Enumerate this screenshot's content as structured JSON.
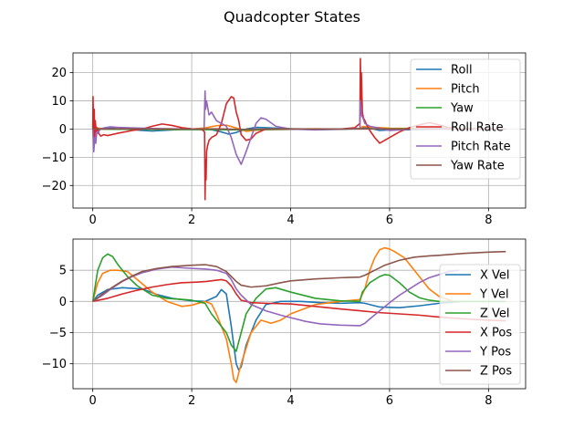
{
  "figure": {
    "suptitle": "Quadcopter States"
  },
  "chart_data": [
    {
      "type": "line",
      "panel": "top",
      "xlim": [
        -0.4,
        8.75
      ],
      "ylim": [
        -28,
        27
      ],
      "xticks": [
        0,
        2,
        4,
        6,
        8
      ],
      "yticks": [
        -20,
        -10,
        0,
        10,
        20
      ],
      "grid": true,
      "legend_position": "top-right",
      "series": [
        {
          "name": "Roll",
          "color": "#1f77b4",
          "x": [
            0,
            0.05,
            0.1,
            0.2,
            0.3,
            0.5,
            0.8,
            1.0,
            1.2,
            1.5,
            1.8,
            2.0,
            2.2,
            2.27,
            2.4,
            2.6,
            2.75,
            2.9,
            3.1,
            3.3,
            3.6,
            4.0,
            4.5,
            5.0,
            5.4,
            5.45,
            5.6,
            5.8,
            6.0,
            6.5,
            7.0,
            7.5,
            8.0,
            8.35
          ],
          "y": [
            0,
            -0.4,
            -0.3,
            0.2,
            0.4,
            0.1,
            -0.2,
            -0.5,
            -0.7,
            -0.4,
            -0.1,
            0.0,
            0.1,
            0.3,
            -0.2,
            -1.0,
            -1.8,
            -1.2,
            0.0,
            0.6,
            0.4,
            0.1,
            -0.2,
            -0.1,
            0.2,
            0.5,
            0.3,
            -0.5,
            -0.3,
            -0.2,
            0.0,
            0.1,
            0.0,
            0.0
          ]
        },
        {
          "name": "Pitch",
          "color": "#ff7f0e",
          "x": [
            0,
            0.1,
            0.3,
            0.6,
            1.0,
            1.5,
            2.0,
            2.27,
            2.5,
            2.7,
            2.9,
            3.1,
            3.3,
            3.6,
            4.0,
            4.5,
            5.0,
            5.4,
            5.45,
            5.7,
            6.0,
            6.5,
            7.0,
            7.5,
            8.0,
            8.35
          ],
          "y": [
            0,
            0.3,
            0.1,
            -0.1,
            0.0,
            0.1,
            0.0,
            0.4,
            1.2,
            1.4,
            0.4,
            -0.8,
            -0.4,
            0.1,
            0.0,
            0.1,
            0.0,
            0.2,
            0.9,
            0.6,
            0.3,
            0.2,
            0.4,
            0.2,
            0.1,
            0.0
          ]
        },
        {
          "name": "Yaw",
          "color": "#2ca02c",
          "x": [
            0,
            0.5,
            1.0,
            1.5,
            2.0,
            2.5,
            3.0,
            3.5,
            4.0,
            4.5,
            5.0,
            5.5,
            6.0,
            6.5,
            7.0,
            7.5,
            8.0,
            8.35
          ],
          "y": [
            0,
            -0.1,
            -0.1,
            -0.2,
            -0.2,
            -0.2,
            -0.3,
            -0.2,
            -0.1,
            0.0,
            0.0,
            0.1,
            0.1,
            0.1,
            0.2,
            0.1,
            0.1,
            0.1
          ]
        },
        {
          "name": "Roll Rate",
          "color": "#d62728",
          "x": [
            0,
            0.005,
            0.01,
            0.02,
            0.03,
            0.04,
            0.05,
            0.07,
            0.09,
            0.12,
            0.16,
            0.22,
            0.3,
            0.5,
            0.8,
            1.0,
            1.2,
            1.4,
            1.6,
            1.8,
            2.0,
            2.2,
            2.26,
            2.27,
            2.28,
            2.29,
            2.3,
            2.32,
            2.35,
            2.4,
            2.5,
            2.6,
            2.7,
            2.8,
            2.85,
            2.9,
            2.95,
            3.0,
            3.1,
            3.2,
            3.3,
            3.5,
            3.8,
            4.0,
            4.5,
            5.0,
            5.3,
            5.4,
            5.41,
            5.42,
            5.43,
            5.45,
            5.47,
            5.5,
            5.55,
            5.6,
            5.7,
            5.8,
            6.0,
            6.2,
            6.4,
            6.6,
            6.8,
            7.0,
            7.2,
            7.5,
            8.0,
            8.35
          ],
          "y": [
            0,
            11.5,
            6,
            -6,
            7,
            -5,
            3,
            -1,
            0.5,
            -1.5,
            -2.5,
            -2.0,
            -2.3,
            -1.5,
            -0.5,
            0.0,
            1.0,
            1.8,
            1.3,
            0.5,
            0.1,
            0.0,
            -1,
            -25,
            -11,
            -18,
            -8,
            -6,
            -4,
            -3,
            -2,
            2,
            9,
            11.5,
            11,
            6,
            3,
            -2,
            -4,
            -3.5,
            -1.5,
            0.0,
            0.0,
            0.0,
            0.0,
            0.0,
            0.5,
            2,
            25,
            8,
            20,
            6,
            4,
            3,
            1,
            -0.5,
            -3,
            -5,
            -3,
            -1,
            0.5,
            1.5,
            2.3,
            1.5,
            0.5,
            0.0,
            0.2,
            0.0
          ]
        },
        {
          "name": "Pitch Rate",
          "color": "#9467bd",
          "x": [
            0,
            0.02,
            0.04,
            0.06,
            0.08,
            0.1,
            0.15,
            0.25,
            0.35,
            0.5,
            0.8,
            1.2,
            1.6,
            2.0,
            2.25,
            2.27,
            2.28,
            2.3,
            2.35,
            2.4,
            2.5,
            2.6,
            2.7,
            2.8,
            2.9,
            3.0,
            3.1,
            3.2,
            3.3,
            3.4,
            3.5,
            3.7,
            4.0,
            4.5,
            5.0,
            5.4,
            5.41,
            5.43,
            5.46,
            5.5,
            5.6,
            5.8,
            6.0,
            6.5,
            7.0,
            7.5,
            8.0,
            8.35
          ],
          "y": [
            0,
            -8,
            -3,
            -5,
            -1,
            -1.5,
            0,
            0.5,
            0.8,
            0.6,
            0.4,
            0.2,
            0.1,
            0.0,
            0.1,
            13.5,
            7,
            10,
            5,
            6,
            3,
            2,
            1,
            -3,
            -9,
            -12.5,
            -8,
            -3,
            2,
            4,
            3.5,
            1,
            0.0,
            -0.3,
            0.0,
            0.2,
            10,
            5,
            4,
            2,
            1,
            0.3,
            -0.5,
            0.0,
            0.3,
            0.1,
            0.0,
            0.0
          ]
        },
        {
          "name": "Yaw Rate",
          "color": "#8c564b",
          "x": [
            0,
            0.5,
            1.0,
            1.5,
            2.0,
            2.5,
            3.0,
            3.5,
            4.0,
            4.5,
            5.0,
            5.5,
            6.0,
            6.5,
            7.0,
            7.5,
            8.0,
            8.35
          ],
          "y": [
            0,
            0.1,
            0.1,
            0.0,
            0.0,
            0.1,
            -0.1,
            0.0,
            0.1,
            0.0,
            0.0,
            0.1,
            0.0,
            0.0,
            0.1,
            0.0,
            0.0,
            0.0
          ]
        }
      ]
    },
    {
      "type": "line",
      "panel": "bottom",
      "xlim": [
        -0.4,
        8.75
      ],
      "ylim": [
        -14,
        10
      ],
      "xticks": [
        0,
        2,
        4,
        6,
        8
      ],
      "yticks": [
        -10,
        -5,
        0,
        5
      ],
      "grid": true,
      "legend_position": "right",
      "series": [
        {
          "name": "X Vel",
          "color": "#1f77b4",
          "x": [
            0,
            0.1,
            0.3,
            0.6,
            1.0,
            1.3,
            1.6,
            2.0,
            2.27,
            2.5,
            2.6,
            2.7,
            2.8,
            2.9,
            2.95,
            3.0,
            3.1,
            3.3,
            3.5,
            3.8,
            4.2,
            4.6,
            5.0,
            5.4,
            5.5,
            5.8,
            6.2,
            6.6,
            7.0,
            7.3,
            7.5,
            8.0,
            8.35
          ],
          "y": [
            0,
            1.0,
            1.9,
            2.2,
            2.0,
            1.1,
            0.5,
            0.1,
            0.0,
            0.8,
            1.9,
            1.2,
            -4,
            -10,
            -11,
            -10.5,
            -7,
            -3,
            -0.5,
            0.0,
            0.0,
            -0.2,
            -0.3,
            -0.2,
            -0.3,
            -0.9,
            -1.0,
            -0.7,
            -0.3,
            -0.1,
            0.0,
            0.0,
            0.0
          ]
        },
        {
          "name": "Y Vel",
          "color": "#ff7f0e",
          "x": [
            0,
            0.1,
            0.2,
            0.35,
            0.5,
            0.7,
            0.9,
            1.2,
            1.5,
            1.8,
            2.0,
            2.27,
            2.4,
            2.5,
            2.6,
            2.7,
            2.8,
            2.85,
            2.9,
            3.0,
            3.2,
            3.4,
            3.6,
            3.8,
            4.0,
            4.5,
            5.0,
            5.4,
            5.5,
            5.6,
            5.7,
            5.8,
            5.9,
            6.0,
            6.1,
            6.3,
            6.5,
            6.8,
            7.0,
            7.3,
            7.6,
            8.0,
            8.35
          ],
          "y": [
            0,
            3,
            4.5,
            5,
            5,
            4.8,
            3.5,
            1.5,
            0,
            -0.8,
            -0.6,
            0.0,
            -0.4,
            -2,
            -4,
            -6,
            -10,
            -12.5,
            -13,
            -10,
            -5,
            -3,
            -3.5,
            -3,
            -2,
            -0.5,
            0.0,
            0.3,
            2,
            5,
            7,
            8.3,
            8.6,
            8.4,
            8.0,
            7,
            5,
            2,
            0.8,
            0.0,
            0.0,
            0.0,
            0.0
          ]
        },
        {
          "name": "Z Vel",
          "color": "#2ca02c",
          "x": [
            0,
            0.05,
            0.1,
            0.2,
            0.3,
            0.4,
            0.5,
            0.7,
            0.9,
            1.2,
            1.5,
            2.0,
            2.27,
            2.4,
            2.6,
            2.7,
            2.8,
            2.9,
            3.0,
            3.1,
            3.3,
            3.5,
            3.7,
            4.0,
            4.5,
            5.0,
            5.4,
            5.45,
            5.6,
            5.8,
            5.9,
            6.0,
            6.2,
            6.4,
            6.6,
            6.8,
            7.0,
            7.5,
            8.0,
            8.35
          ],
          "y": [
            0,
            2.5,
            5,
            7,
            7.6,
            7.2,
            6,
            4,
            2.5,
            1.0,
            0.5,
            0.2,
            -0.3,
            -2,
            -4,
            -5,
            -7,
            -8,
            -5,
            -2,
            0.5,
            2,
            2.2,
            1.5,
            0.5,
            0.1,
            0.0,
            1.5,
            3,
            4,
            4.3,
            4.2,
            3,
            1.5,
            0.6,
            0.2,
            0.0,
            0.0,
            0.0,
            0.0
          ]
        },
        {
          "name": "X Pos",
          "color": "#d62728",
          "x": [
            0,
            0.3,
            0.6,
            0.9,
            1.2,
            1.5,
            1.8,
            2.1,
            2.3,
            2.5,
            2.6,
            2.7,
            2.8,
            2.9,
            3.0,
            3.2,
            3.5,
            4.0,
            4.5,
            5.0,
            5.4,
            5.8,
            6.2,
            6.6,
            7.0,
            7.5,
            8.0,
            8.35
          ],
          "y": [
            0,
            0.5,
            1.2,
            1.8,
            2.3,
            2.7,
            3.0,
            3.1,
            3.2,
            3.4,
            3.5,
            3.3,
            2.5,
            1.2,
            0.2,
            -0.2,
            -0.3,
            -0.4,
            -0.8,
            -1.2,
            -1.5,
            -1.8,
            -2.0,
            -2.2,
            -2.5,
            -2.8,
            -3.0,
            -3.1
          ]
        },
        {
          "name": "Y Pos",
          "color": "#9467bd",
          "x": [
            0,
            0.2,
            0.4,
            0.6,
            0.8,
            1.0,
            1.3,
            1.6,
            2.0,
            2.27,
            2.5,
            2.7,
            2.8,
            2.9,
            3.0,
            3.2,
            3.5,
            3.8,
            4.0,
            4.3,
            4.6,
            5.0,
            5.4,
            5.5,
            5.6,
            5.8,
            6.0,
            6.2,
            6.4,
            6.6,
            6.8,
            7.0,
            7.2,
            7.4
          ],
          "y": [
            0,
            1.0,
            2.2,
            3.2,
            4.0,
            4.6,
            5.2,
            5.5,
            5.3,
            5.2,
            5.0,
            4.5,
            3.5,
            2.0,
            1.0,
            -0.5,
            -1.5,
            -2.2,
            -2.6,
            -3.2,
            -3.6,
            -3.8,
            -3.9,
            -3.5,
            -2.8,
            -1.5,
            -0.2,
            1.0,
            2.0,
            3.0,
            3.8,
            4.3,
            4.8,
            5.0
          ]
        },
        {
          "name": "Z Pos",
          "color": "#8c564b",
          "x": [
            0,
            0.2,
            0.4,
            0.6,
            0.8,
            1.0,
            1.3,
            1.6,
            2.0,
            2.27,
            2.5,
            2.7,
            2.8,
            2.9,
            3.0,
            3.2,
            3.5,
            3.8,
            4.0,
            4.5,
            5.0,
            5.4,
            5.5,
            5.7,
            5.9,
            6.2,
            6.5,
            6.8,
            7.0,
            7.5,
            8.0,
            8.35
          ],
          "y": [
            0,
            1.2,
            2.3,
            3.3,
            4.1,
            4.8,
            5.3,
            5.6,
            5.8,
            5.9,
            5.6,
            4.8,
            4.0,
            3.2,
            2.6,
            2.3,
            2.5,
            3.0,
            3.3,
            3.6,
            3.8,
            3.9,
            4.2,
            5.0,
            5.8,
            6.6,
            7.1,
            7.3,
            7.4,
            7.7,
            7.9,
            8.0
          ]
        }
      ]
    }
  ]
}
